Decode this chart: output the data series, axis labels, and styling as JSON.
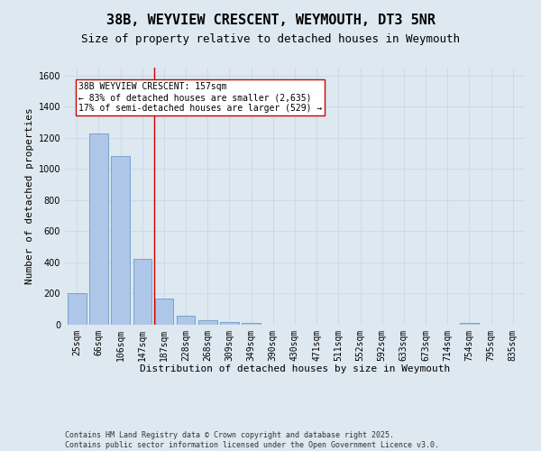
{
  "title": "38B, WEYVIEW CRESCENT, WEYMOUTH, DT3 5NR",
  "subtitle": "Size of property relative to detached houses in Weymouth",
  "xlabel": "Distribution of detached houses by size in Weymouth",
  "ylabel": "Number of detached properties",
  "categories": [
    "25sqm",
    "66sqm",
    "106sqm",
    "147sqm",
    "187sqm",
    "228sqm",
    "268sqm",
    "309sqm",
    "349sqm",
    "390sqm",
    "430sqm",
    "471sqm",
    "511sqm",
    "552sqm",
    "592sqm",
    "633sqm",
    "673sqm",
    "714sqm",
    "754sqm",
    "795sqm",
    "835sqm"
  ],
  "values": [
    200,
    1230,
    1080,
    420,
    170,
    60,
    30,
    20,
    10,
    0,
    0,
    0,
    0,
    0,
    0,
    0,
    0,
    0,
    10,
    0,
    0
  ],
  "bar_color": "#aec6e8",
  "bar_edge_color": "#5a8fc2",
  "grid_color": "#c8d8e8",
  "background_color": "#dde8f0",
  "vline_color": "#cc0000",
  "vline_pos": 3.55,
  "annotation_text": "38B WEYVIEW CRESCENT: 157sqm\n← 83% of detached houses are smaller (2,635)\n17% of semi-detached houses are larger (529) →",
  "annotation_box_color": "#ffffff",
  "annotation_border_color": "#cc0000",
  "ylim": [
    0,
    1650
  ],
  "footnote": "Contains HM Land Registry data © Crown copyright and database right 2025.\nContains public sector information licensed under the Open Government Licence v3.0.",
  "title_fontsize": 11,
  "subtitle_fontsize": 9,
  "xlabel_fontsize": 8,
  "ylabel_fontsize": 8,
  "tick_fontsize": 7,
  "annotation_fontsize": 7,
  "footnote_fontsize": 6
}
